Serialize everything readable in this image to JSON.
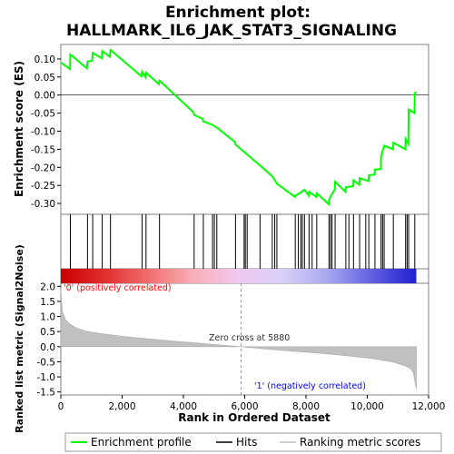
{
  "chart_data": {
    "type": "line",
    "title_line1": "Enrichment plot:",
    "title_line2": "HALLMARK_IL6_JAK_STAT3_SIGNALING",
    "es_ylabel": "Enrichment score (ES)",
    "metric_ylabel": "Ranked list metric (Signal2Noise)",
    "xlabel": "Rank in Ordered Dataset",
    "xlim": [
      0,
      12000
    ],
    "x_ticks": [
      0,
      2000,
      4000,
      6000,
      8000,
      10000,
      12000
    ],
    "x_tick_labels": [
      "0",
      "2,000",
      "4,000",
      "6,000",
      "8,000",
      "10,000",
      "12,000"
    ],
    "es_ylim": [
      -0.33,
      0.14
    ],
    "es_ticks": [
      0.1,
      0.05,
      0.0,
      -0.05,
      -0.1,
      -0.15,
      -0.2,
      -0.25,
      -0.3
    ],
    "es_tick_labels": [
      "0.10",
      "0.05",
      "0.00",
      "-0.05",
      "-0.10",
      "-0.15",
      "-0.20",
      "-0.25",
      "-0.30"
    ],
    "metric_ylim": [
      -1.6,
      2.1
    ],
    "metric_ticks": [
      2.0,
      1.5,
      1.0,
      0.5,
      0.0,
      -0.5,
      -1.0,
      -1.5
    ],
    "metric_tick_labels": [
      "2.0",
      "1.5",
      "1.0",
      "0.5",
      "0.0",
      "-0.5",
      "-1.0",
      "-1.5"
    ],
    "n_genes": 11600,
    "zero_cross": 5880,
    "zero_cross_label": "Zero cross at 5880",
    "pos_label": "'0' (positively correlated)",
    "neg_label": "'1' (negatively correlated)",
    "hits": [
      310,
      870,
      1040,
      1350,
      1620,
      2650,
      2780,
      3220,
      4350,
      4650,
      4950,
      5010,
      5090,
      5700,
      5980,
      6020,
      6080,
      6500,
      6900,
      6980,
      7050,
      7650,
      7750,
      7830,
      7880,
      7950,
      8100,
      8200,
      8350,
      8750,
      8800,
      8850,
      8950,
      9300,
      9400,
      9550,
      9750,
      9950,
      10050,
      10250,
      10450,
      10500,
      10550,
      10850,
      11250,
      11300,
      11350,
      11550
    ],
    "es_profile": {
      "x": [
        0,
        300,
        310,
        850,
        870,
        1020,
        1040,
        1330,
        1350,
        1600,
        1620,
        2630,
        2650,
        2760,
        2780,
        3200,
        3220,
        4330,
        4350,
        4630,
        4650,
        4930,
        5090,
        5680,
        5700,
        6500,
        6900,
        6980,
        7050,
        7640,
        7650,
        7740,
        7950,
        8090,
        8100,
        8340,
        8350,
        8740,
        8750,
        8800,
        8940,
        8950,
        9290,
        9300,
        9540,
        9550,
        9740,
        9750,
        10040,
        10050,
        10240,
        10250,
        10440,
        10450,
        10550,
        10840,
        10850,
        11240,
        11250,
        11340,
        11350,
        11540,
        11550,
        11600
      ],
      "es": [
        0.09,
        0.072,
        0.112,
        0.074,
        0.093,
        0.095,
        0.117,
        0.102,
        0.122,
        0.106,
        0.125,
        0.052,
        0.065,
        0.05,
        0.062,
        0.03,
        0.04,
        -0.048,
        -0.055,
        -0.066,
        -0.073,
        -0.082,
        -0.09,
        -0.13,
        -0.137,
        -0.195,
        -0.225,
        -0.235,
        -0.245,
        -0.282,
        -0.278,
        -0.275,
        -0.262,
        -0.278,
        -0.268,
        -0.282,
        -0.272,
        -0.302,
        -0.293,
        -0.28,
        -0.262,
        -0.24,
        -0.268,
        -0.255,
        -0.252,
        -0.236,
        -0.248,
        -0.23,
        -0.238,
        -0.222,
        -0.22,
        -0.206,
        -0.205,
        -0.17,
        -0.14,
        -0.15,
        -0.132,
        -0.15,
        -0.122,
        -0.135,
        -0.04,
        -0.05,
        0.005,
        0.008
      ]
    },
    "metric_profile": {
      "x": [
        0,
        50,
        150,
        300,
        500,
        800,
        1200,
        1800,
        2500,
        3200,
        4000,
        4800,
        5500,
        5880,
        6500,
        7200,
        8000,
        8800,
        9500,
        10200,
        10800,
        11200,
        11400,
        11500,
        11560,
        11600
      ],
      "value": [
        1.9,
        1.15,
        0.9,
        0.75,
        0.62,
        0.52,
        0.45,
        0.37,
        0.29,
        0.23,
        0.16,
        0.09,
        0.03,
        0.0,
        -0.06,
        -0.12,
        -0.18,
        -0.25,
        -0.32,
        -0.4,
        -0.5,
        -0.62,
        -0.72,
        -0.85,
        -1.2,
        -1.4
      ]
    },
    "colorbar_stops": [
      "#cc0000",
      "#e03030",
      "#f07070",
      "#f8b0b8",
      "#f0c8f0",
      "#d8d0f8",
      "#a8a8f0",
      "#6060e0",
      "#2020d0"
    ],
    "colors": {
      "profile": "#00ff00",
      "hits": "#000000",
      "metric_fill": "#c0c0c0",
      "zero_line": "#999999",
      "pos_text": "#ff0000",
      "neg_text": "#0000ff"
    },
    "legend": [
      {
        "label": "Enrichment profile",
        "swatch": "line-green"
      },
      {
        "label": "Hits",
        "swatch": "line-black"
      },
      {
        "label": "Ranking metric scores",
        "swatch": "line-grey"
      }
    ]
  }
}
